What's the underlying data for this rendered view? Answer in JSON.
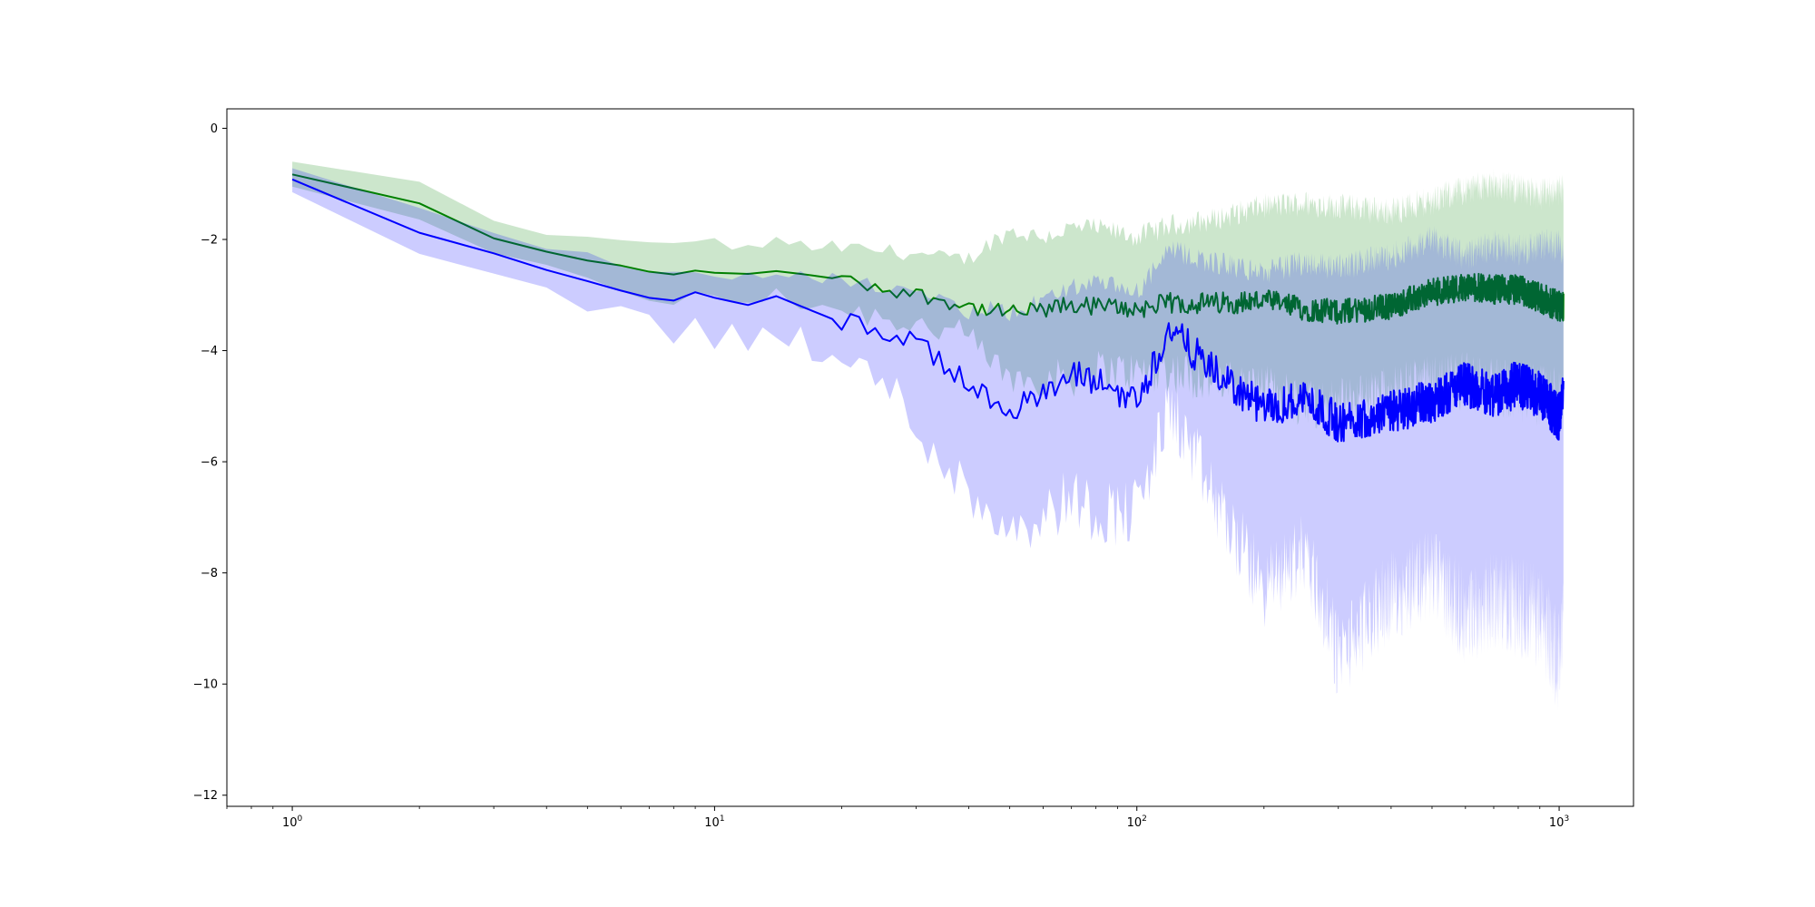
{
  "chart_data": {
    "type": "line",
    "title": "",
    "xlabel": "",
    "ylabel": "",
    "xscale": "log",
    "xlim": [
      0.7,
      1500
    ],
    "ylim": [
      -12.2,
      0.35
    ],
    "grid": false,
    "x_ticks": [
      {
        "base": "10",
        "exp": "0",
        "value": 1
      },
      {
        "base": "10",
        "exp": "1",
        "value": 10
      },
      {
        "base": "10",
        "exp": "2",
        "value": 100
      },
      {
        "base": "10",
        "exp": "3",
        "value": 1000
      }
    ],
    "y_ticks": [
      {
        "label": "0",
        "value": 0
      },
      {
        "label": "−2",
        "value": -2
      },
      {
        "label": "−4",
        "value": -4
      },
      {
        "label": "−6",
        "value": -6
      },
      {
        "label": "−8",
        "value": -8
      },
      {
        "label": "−10",
        "value": -10
      },
      {
        "label": "−12",
        "value": -12
      }
    ],
    "x_range": [
      1,
      1024
    ],
    "series": [
      {
        "color": "#008000",
        "band_color": "#008000",
        "band_opacity": 0.2,
        "x": [
          1,
          2,
          3,
          4,
          5,
          6,
          7,
          8,
          9,
          10,
          12,
          14,
          16,
          20,
          25,
          30,
          35,
          40,
          45,
          50,
          60,
          70,
          80,
          100,
          120,
          150,
          200,
          250,
          300,
          400,
          500,
          600,
          700,
          800,
          900,
          1000,
          1024
        ],
        "values": [
          -0.83,
          -1.35,
          -1.98,
          -2.22,
          -2.38,
          -2.47,
          -2.58,
          -2.63,
          -2.56,
          -2.6,
          -2.62,
          -2.57,
          -2.62,
          -2.72,
          -2.88,
          -2.98,
          -3.1,
          -3.2,
          -3.3,
          -3.32,
          -3.28,
          -3.18,
          -3.2,
          -3.25,
          -3.15,
          -3.15,
          -3.1,
          -3.25,
          -3.3,
          -3.2,
          -2.95,
          -2.85,
          -2.9,
          -2.9,
          -3.05,
          -3.2,
          -3.2
        ],
        "band_upper": [
          -0.6,
          -0.97,
          -1.68,
          -1.88,
          -1.98,
          -2.05,
          -2.1,
          -2.08,
          -1.98,
          -2.05,
          -2.15,
          -2.05,
          -2.1,
          -2.15,
          -2.2,
          -2.25,
          -2.35,
          -2.35,
          -2.05,
          -1.85,
          -1.95,
          -1.8,
          -1.8,
          -1.95,
          -1.75,
          -1.65,
          -1.4,
          -1.35,
          -1.4,
          -1.5,
          -1.3,
          -1.1,
          -1.0,
          -1.1,
          -1.2,
          -1.1,
          -1.1
        ],
        "band_lower": [
          -1.05,
          -1.7,
          -2.28,
          -2.55,
          -2.78,
          -2.88,
          -3.0,
          -3.08,
          -3.05,
          -3.15,
          -3.08,
          -3.05,
          -3.1,
          -3.25,
          -3.38,
          -3.5,
          -3.65,
          -3.8,
          -4.2,
          -4.5,
          -4.5,
          -4.5,
          -4.35,
          -4.4,
          -4.35,
          -4.55,
          -4.7,
          -4.9,
          -5.0,
          -4.75,
          -4.6,
          -4.55,
          -4.7,
          -4.7,
          -4.8,
          -4.9,
          -4.9
        ]
      },
      {
        "color": "#0000ff",
        "band_color": "#0000ff",
        "band_opacity": 0.2,
        "x": [
          1,
          2,
          3,
          4,
          5,
          6,
          7,
          8,
          9,
          10,
          12,
          14,
          16,
          20,
          25,
          30,
          35,
          40,
          45,
          50,
          60,
          70,
          80,
          100,
          120,
          150,
          200,
          250,
          300,
          400,
          500,
          600,
          700,
          800,
          900,
          1000,
          1024
        ],
        "values": [
          -0.92,
          -1.88,
          -2.25,
          -2.55,
          -2.75,
          -2.92,
          -3.05,
          -3.1,
          -2.95,
          -3.05,
          -3.18,
          -3.02,
          -3.2,
          -3.5,
          -3.62,
          -3.88,
          -4.25,
          -4.65,
          -4.85,
          -5.0,
          -4.85,
          -4.45,
          -4.55,
          -4.9,
          -3.6,
          -4.35,
          -5.05,
          -4.85,
          -5.3,
          -5.1,
          -4.9,
          -4.6,
          -4.8,
          -4.6,
          -4.8,
          -5.2,
          -4.5
        ],
        "band_upper": [
          -0.72,
          -1.42,
          -1.92,
          -2.15,
          -2.25,
          -2.42,
          -2.52,
          -2.55,
          -2.5,
          -2.6,
          -2.7,
          -2.58,
          -2.65,
          -2.75,
          -2.85,
          -3.0,
          -3.15,
          -3.3,
          -3.25,
          -3.35,
          -3.1,
          -2.85,
          -2.8,
          -2.95,
          -2.2,
          -2.4,
          -2.6,
          -2.4,
          -2.5,
          -2.3,
          -2.0,
          -2.3,
          -2.1,
          -2.2,
          -2.1,
          -2.1,
          -2.2
        ],
        "band_lower": [
          -1.15,
          -2.2,
          -2.5,
          -2.85,
          -3.15,
          -3.4,
          -3.55,
          -3.62,
          -3.58,
          -3.72,
          -3.8,
          -3.7,
          -3.8,
          -4.25,
          -4.55,
          -5.3,
          -6.0,
          -6.6,
          -6.9,
          -7.1,
          -7.0,
          -6.6,
          -6.9,
          -6.9,
          -5.0,
          -6.6,
          -8.3,
          -7.6,
          -9.5,
          -8.4,
          -8.0,
          -8.8,
          -8.5,
          -8.6,
          -8.8,
          -9.6,
          -9.0
        ]
      }
    ]
  }
}
